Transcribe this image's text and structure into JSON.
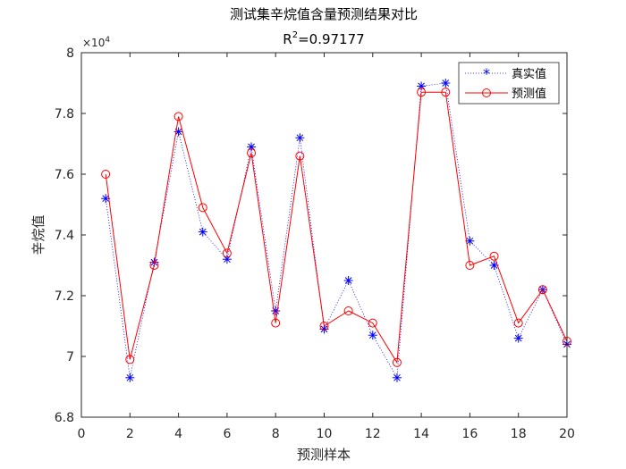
{
  "chart_data": {
    "type": "line",
    "title": "测试集辛烷值含量预测结果对比",
    "subtitle_base": "R",
    "subtitle_sup": "2",
    "subtitle_rest": "=0.97177",
    "xlabel": "预测样本",
    "ylabel": "辛烷值",
    "y_exponent_base": "×10",
    "y_exponent_power": "4",
    "xlim": [
      0,
      20
    ],
    "ylim": [
      6.8,
      8.0
    ],
    "x_ticks": [
      "0",
      "2",
      "4",
      "6",
      "8",
      "10",
      "12",
      "14",
      "16",
      "18",
      "20"
    ],
    "y_ticks": [
      "6.8",
      "7",
      "7.2",
      "7.4",
      "7.6",
      "7.8",
      "8"
    ],
    "x": [
      1,
      2,
      3,
      4,
      5,
      6,
      7,
      8,
      9,
      10,
      11,
      12,
      13,
      14,
      15,
      16,
      17,
      18,
      19,
      20
    ],
    "series": [
      {
        "name": "真实值",
        "color": "#0000ff",
        "line_style": "dotted",
        "marker": "asterisk",
        "values": [
          7.52,
          6.93,
          7.31,
          7.74,
          7.41,
          7.32,
          7.69,
          7.15,
          7.72,
          7.09,
          7.25,
          7.07,
          6.93,
          7.89,
          7.9,
          7.38,
          7.3,
          7.06,
          7.22,
          7.04
        ]
      },
      {
        "name": "预测值",
        "color": "#ff0000",
        "line_style": "solid",
        "marker": "circle",
        "values": [
          7.6,
          6.99,
          7.3,
          7.79,
          7.49,
          7.34,
          7.67,
          7.11,
          7.66,
          7.1,
          7.15,
          7.11,
          6.98,
          7.87,
          7.87,
          7.3,
          7.33,
          7.11,
          7.22,
          7.05
        ]
      }
    ],
    "legend_position": "top-right",
    "grid": false
  }
}
